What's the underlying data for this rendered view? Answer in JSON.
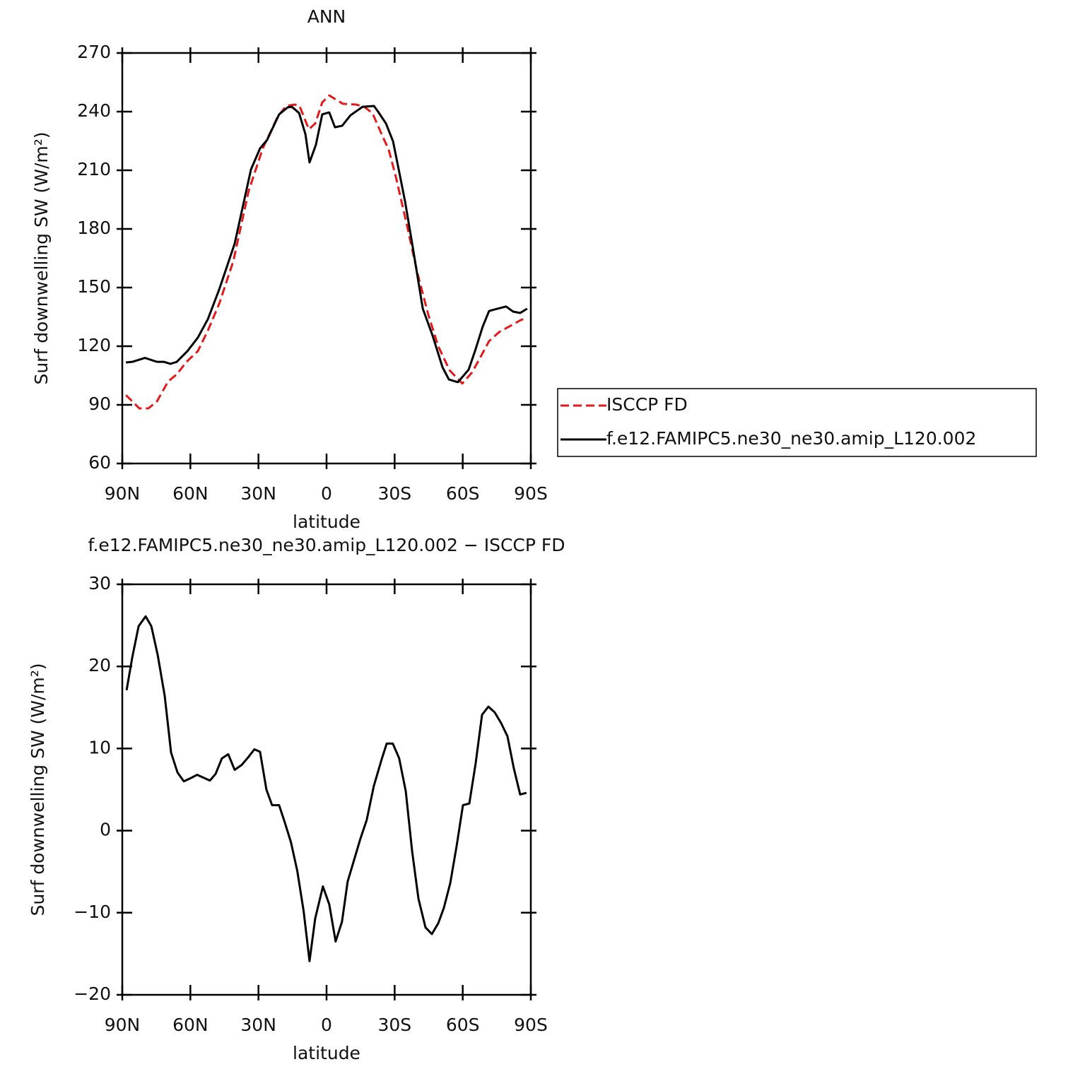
{
  "chart_data": [
    {
      "type": "line",
      "title": "ANN",
      "xlabel": "latitude",
      "ylabel": "Surf downwelling SW (W/m²)",
      "xlim": [
        90,
        -90
      ],
      "ylim": [
        60,
        270
      ],
      "xticks": [
        {
          "value": 90,
          "label": "90N"
        },
        {
          "value": 60,
          "label": "60N"
        },
        {
          "value": 30,
          "label": "30N"
        },
        0,
        {
          "value": -30,
          "label": "30S"
        },
        {
          "value": -60,
          "label": "60S"
        },
        {
          "value": -90,
          "label": "90S"
        }
      ],
      "yticks": [
        60,
        90,
        120,
        150,
        180,
        210,
        240,
        270
      ],
      "legend": "right",
      "series": [
        {
          "name": "ISCCP FD",
          "color": "#e31a1c",
          "linestyle": "dashed",
          "x": [
            88.4,
            85.6,
            82.5,
            78.5,
            74.7,
            69.8,
            66,
            61.7,
            56.7,
            52.3,
            47.3,
            41.1,
            34.3,
            28.1,
            21.5,
            17.8,
            14.0,
            11.9,
            7.8,
            5,
            1.9,
            -1.2,
            -7.2,
            -13.1,
            -16.5,
            -20.2,
            -24.3,
            -27.4,
            -30.5,
            -35.5,
            -39.9,
            -44.8,
            -49.2,
            -54.2,
            -59.8,
            -64.1,
            -67.9,
            -71.6,
            -76,
            -82.2,
            -85.6,
            -88.4
          ],
          "values": [
            95,
            91.8,
            88.2,
            88.2,
            91.8,
            102,
            105.6,
            112,
            117.5,
            128,
            141.7,
            163.4,
            199.5,
            221.2,
            237.5,
            242.9,
            243.6,
            242.9,
            231,
            233.9,
            244.7,
            248.3,
            244,
            243.6,
            242.5,
            239.3,
            228.4,
            220.5,
            206.8,
            181.5,
            158,
            136.3,
            120,
            107.7,
            100.9,
            106.6,
            114.6,
            122.6,
            127.2,
            131.2,
            133.4,
            134.5
          ]
        },
        {
          "name": "f.e12.FAMIPC5.ne30_ne30.amip_L120.002",
          "color": "#000000",
          "linestyle": "solid",
          "x": [
            88.4,
            85.6,
            80,
            74.7,
            71.6,
            68.8,
            66,
            61.3,
            56.7,
            52.3,
            47.3,
            40.5,
            33.3,
            29.3,
            26.2,
            20.9,
            17.1,
            15.3,
            12.1,
            9.3,
            7.5,
            4.7,
            1.9,
            -1.2,
            -3.7,
            -6.9,
            -10.6,
            -15.9,
            -20.9,
            -22.7,
            -26.2,
            -29.3,
            -31.8,
            -34.6,
            -38,
            -42.4,
            -46.7,
            -51.1,
            -53.9,
            -57.9,
            -62.6,
            -65.4,
            -68.8,
            -71.6,
            -74.1,
            -79.1,
            -82.2,
            -85.3,
            -88.4
          ],
          "values": [
            111.7,
            112,
            114,
            112,
            112,
            111,
            112,
            117.5,
            124.4,
            133.8,
            149,
            172.4,
            210.4,
            221.2,
            225.5,
            238.6,
            242.2,
            242.5,
            239.3,
            228.4,
            214,
            223,
            238.6,
            239.6,
            232,
            232.8,
            238.2,
            242.5,
            242.9,
            240,
            233.9,
            224.8,
            210.4,
            194,
            170.6,
            139.2,
            125.5,
            109.2,
            103,
            101.6,
            108,
            117.5,
            130,
            138,
            138.8,
            140.3,
            137.7,
            137,
            139.2
          ]
        }
      ]
    },
    {
      "type": "line",
      "title": "f.e12.FAMIPC5.ne30_ne30.amip_L120.002 − ISCCP FD",
      "xlabel": "latitude",
      "ylabel": "Surf downwelling SW (W/m²)",
      "xlim": [
        90,
        -90
      ],
      "ylim": [
        -20,
        30
      ],
      "xticks": [
        {
          "value": 90,
          "label": "90N"
        },
        {
          "value": 60,
          "label": "60N"
        },
        {
          "value": 30,
          "label": "30N"
        },
        0,
        {
          "value": -30,
          "label": "30S"
        },
        {
          "value": -60,
          "label": "60S"
        },
        {
          "value": -90,
          "label": "90S"
        }
      ],
      "yticks": [
        {
          "value": -20,
          "label": "−20"
        },
        {
          "value": -10,
          "label": "−10"
        },
        0,
        10,
        20,
        30
      ],
      "series": [
        {
          "color": "#000000",
          "linestyle": "solid",
          "x": [
            88.1,
            85.6,
            82.8,
            79.7,
            77.2,
            74.4,
            71.3,
            68.5,
            65.7,
            62.9,
            59.8,
            57,
            51.4,
            48.9,
            46.1,
            43.3,
            40.5,
            37.4,
            34.6,
            31.8,
            29.3,
            26.5,
            24,
            20.9,
            18.4,
            15.7,
            12.9,
            10.1,
            7.5,
            5,
            1.6,
            -1.2,
            -4.0,
            -6.8,
            -9.3,
            -12.1,
            -14.9,
            -17.7,
            -20.8,
            -24.3,
            -26.5,
            -29.2,
            -32,
            -34.9,
            -37.7,
            -40.5,
            -43.6,
            -46.4,
            -49.2,
            -51.7,
            -54.5,
            -57.3,
            -60.1,
            -62.9,
            -65.7,
            -68.5,
            -71.3,
            -74.1,
            -76.9,
            -79.7,
            -82.5,
            -85.3,
            -88.1
          ],
          "values": [
            17.1,
            21.1,
            24.9,
            26.1,
            24.9,
            21.4,
            16.4,
            9.5,
            7.1,
            6,
            6.4,
            6.8,
            6.1,
            6.9,
            8.8,
            9.3,
            7.4,
            8,
            8.9,
            9.9,
            9.6,
            5,
            3.1,
            3.1,
            1,
            -1.4,
            -4.9,
            -9.8,
            -15.9,
            -10.7,
            -6.8,
            -9,
            -13.5,
            -11.1,
            -6.2,
            -3.6,
            -1,
            1.3,
            5.4,
            8.7,
            10.6,
            10.6,
            8.8,
            4.8,
            -2.5,
            -8.3,
            -11.8,
            -12.6,
            -11.3,
            -9.4,
            -6.4,
            -1.9,
            3.1,
            3.3,
            8.2,
            14.1,
            15.1,
            14.4,
            13.1,
            11.5,
            7.6,
            4.4,
            4.6
          ]
        }
      ]
    }
  ]
}
